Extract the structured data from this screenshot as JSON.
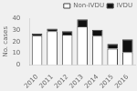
{
  "chart_data": {
    "type": "bar",
    "stacked": true,
    "categories": [
      "2010",
      "2011",
      "2012",
      "2013",
      "2014",
      "2015",
      "2016"
    ],
    "series": [
      {
        "name": "Non-IVDU",
        "color": "#ffffff",
        "values": [
          25,
          29,
          26,
          33,
          25,
          14,
          11
        ]
      },
      {
        "name": "IVDU",
        "color": "#111111",
        "values": [
          2,
          2,
          3,
          6,
          5,
          4,
          11
        ]
      }
    ],
    "ylabel": "No. cases",
    "ylim": [
      0,
      40
    ],
    "yticks": [
      0,
      10,
      20,
      30,
      40
    ],
    "legend": "upper right",
    "grid": false
  }
}
